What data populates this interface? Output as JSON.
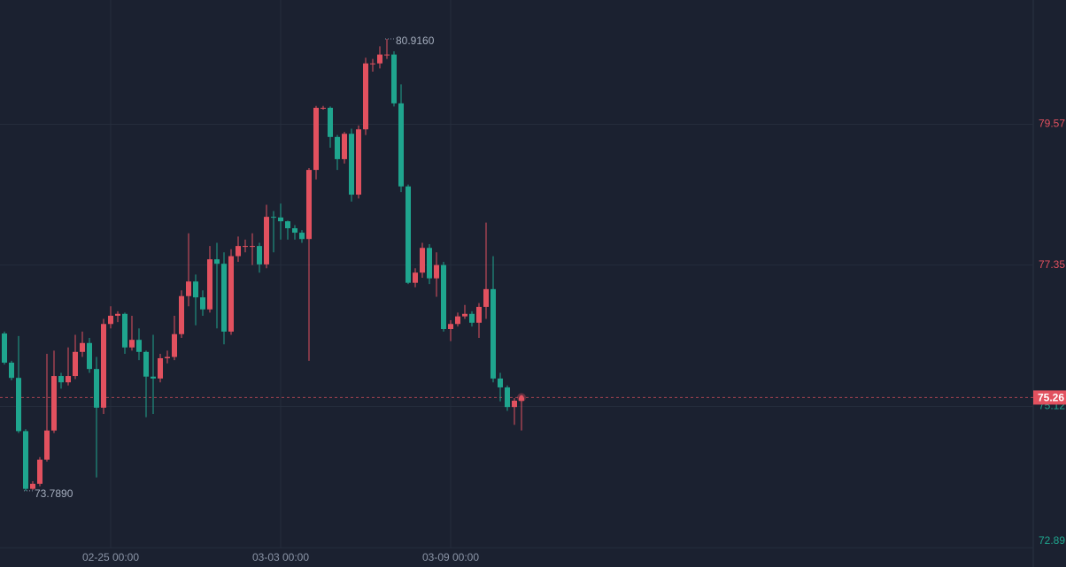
{
  "chart_data": {
    "type": "candlestick",
    "categories": [
      null,
      null,
      null,
      null,
      null,
      null,
      null,
      null,
      null,
      null,
      null,
      null,
      null,
      null,
      null,
      "02-25 00:00",
      null,
      null,
      null,
      null,
      null,
      null,
      null,
      null,
      null,
      null,
      null,
      null,
      null,
      null,
      null,
      null,
      null,
      null,
      null,
      null,
      null,
      null,
      null,
      "03-03 00:00",
      null,
      null,
      null,
      null,
      null,
      null,
      null,
      null,
      null,
      null,
      null,
      null,
      null,
      null,
      null,
      null,
      null,
      null,
      null,
      null,
      null,
      null,
      null,
      "03-09 00:00",
      null,
      null,
      null,
      null,
      null,
      null,
      null,
      null,
      null,
      null
    ],
    "open": [
      76.27,
      75.81,
      75.57,
      74.73,
      73.82,
      73.9,
      74.28,
      74.74,
      75.6,
      75.5,
      75.6,
      75.98,
      76.12,
      75.71,
      75.1,
      76.42,
      76.55,
      76.58,
      76.05,
      76.17,
      75.98,
      75.59,
      75.56,
      75.88,
      75.9,
      76.26,
      76.86,
      77.09,
      76.84,
      76.65,
      77.44,
      77.37,
      76.3,
      77.49,
      77.65,
      77.65,
      77.65,
      77.36,
      78.11,
      78.1,
      78.04,
      77.93,
      77.86,
      77.76,
      78.85,
      79.83,
      79.83,
      79.37,
      79.02,
      79.42,
      78.46,
      79.49,
      80.53,
      80.53,
      80.67,
      80.67,
      79.9,
      78.59,
      77.07,
      77.23,
      77.62,
      77.14,
      77.35,
      76.34,
      76.42,
      76.54,
      76.58,
      76.44,
      76.69,
      76.97,
      75.56,
      75.42,
      75.11,
      75.21
    ],
    "high": [
      76.3,
      75.84,
      76.23,
      74.76,
      73.94,
      74.32,
      75.95,
      76.0,
      75.65,
      76.05,
      76.25,
      76.3,
      76.2,
      75.9,
      76.5,
      76.7,
      76.62,
      76.6,
      76.55,
      76.35,
      76.0,
      76.25,
      75.95,
      76.0,
      76.55,
      76.95,
      77.85,
      77.2,
      76.95,
      77.65,
      77.7,
      77.55,
      77.6,
      77.8,
      77.75,
      77.85,
      77.7,
      78.3,
      78.2,
      78.32,
      78.05,
      77.98,
      77.9,
      78.88,
      79.86,
      79.86,
      79.85,
      79.4,
      79.45,
      79.5,
      79.55,
      80.62,
      80.6,
      80.8,
      80.916,
      80.72,
      80.2,
      78.62,
      77.3,
      77.7,
      77.68,
      77.55,
      77.4,
      76.48,
      76.6,
      76.72,
      76.62,
      76.75,
      78.02,
      77.49,
      75.65,
      75.45,
      75.25,
      75.3
    ],
    "low": [
      75.78,
      75.53,
      74.7,
      73.789,
      73.8,
      73.86,
      74.25,
      74.7,
      75.4,
      75.45,
      75.55,
      75.9,
      75.65,
      74.0,
      75.0,
      76.35,
      76.45,
      75.95,
      76.0,
      75.85,
      74.95,
      75.0,
      75.5,
      75.8,
      75.85,
      76.2,
      76.7,
      76.4,
      76.55,
      76.6,
      76.35,
      76.1,
      76.25,
      77.4,
      77.55,
      77.35,
      77.23,
      77.3,
      77.55,
      77.75,
      77.75,
      77.75,
      77.7,
      75.84,
      78.7,
      79.8,
      79.2,
      78.85,
      78.95,
      78.35,
      78.4,
      79.4,
      80.4,
      80.45,
      80.6,
      79.85,
      78.5,
      77.05,
      77.0,
      77.15,
      77.05,
      76.85,
      76.3,
      76.15,
      76.38,
      76.5,
      76.38,
      76.2,
      76.5,
      75.5,
      75.2,
      75.05,
      74.83,
      74.74
    ],
    "close": [
      75.81,
      75.57,
      74.73,
      73.82,
      73.9,
      74.28,
      74.74,
      75.6,
      75.5,
      75.6,
      75.98,
      76.12,
      75.71,
      75.1,
      76.42,
      76.55,
      76.58,
      76.05,
      76.17,
      75.98,
      75.59,
      75.56,
      75.88,
      75.9,
      76.26,
      76.86,
      77.09,
      76.84,
      76.65,
      77.44,
      77.37,
      76.3,
      77.49,
      77.65,
      77.65,
      77.65,
      77.36,
      78.11,
      78.1,
      78.04,
      77.93,
      77.86,
      77.76,
      78.85,
      79.83,
      79.83,
      79.37,
      79.02,
      79.42,
      78.46,
      79.49,
      80.53,
      80.53,
      80.67,
      80.67,
      79.9,
      78.59,
      77.07,
      77.23,
      77.62,
      77.14,
      77.35,
      76.34,
      76.42,
      76.54,
      76.58,
      76.44,
      76.69,
      76.97,
      75.56,
      75.42,
      75.11,
      75.21,
      75.26
    ],
    "up_color": "#e2515f",
    "down_color": "#1fa58e",
    "ylim": [
      72.88,
      81.53
    ],
    "yticks": [
      79.57,
      77.35,
      75.12,
      72.89
    ],
    "grid": true,
    "last_price": 75.26,
    "annotations": [
      {
        "label": "80.9160",
        "value": 80.916
      },
      {
        "label": "73.7890",
        "value": 73.789
      }
    ]
  }
}
